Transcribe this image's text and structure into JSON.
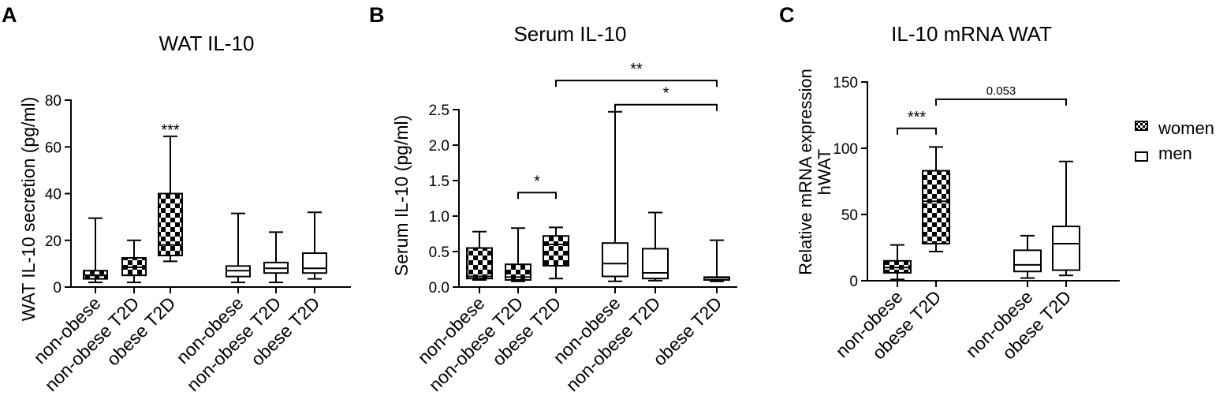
{
  "legend": {
    "items": [
      {
        "label": "women",
        "pattern": "checker"
      },
      {
        "label": "men",
        "pattern": "white"
      }
    ]
  },
  "colors": {
    "ink": "#000000",
    "background": "#ffffff"
  },
  "chart_data": [
    {
      "panel_label": "A",
      "type": "box",
      "title": "WAT IL-10",
      "ylabel": "WAT IL-10 secretion (pg/ml)",
      "ylim": [
        0,
        80
      ],
      "yticks": [
        "0",
        "20",
        "40",
        "60",
        "80"
      ],
      "categories": [
        "non-obese",
        "non-obese T2D",
        "obese T2D",
        "non-obese",
        "non-obese T2D",
        "obese T2D"
      ],
      "series": [
        {
          "name": "women",
          "pattern": "checker",
          "boxes": [
            {
              "category": "non-obese",
              "min": 2,
              "q1": 3.5,
              "median": 5,
              "q3": 7,
              "max": 29.5
            },
            {
              "category": "non-obese T2D",
              "min": 2,
              "q1": 5,
              "median": 8.5,
              "q3": 12.5,
              "max": 20
            },
            {
              "category": "obese T2D",
              "min": 11,
              "q1": 13.5,
              "median": 18,
              "q3": 40,
              "max": 64.5
            }
          ]
        },
        {
          "pattern": "white",
          "boxes": [
            {
              "category": "non-obese",
              "min": 2,
              "q1": 4.5,
              "median": 7,
              "q3": 9,
              "max": 31.5
            },
            {
              "category": "non-obese T2D",
              "min": 2,
              "q1": 6,
              "median": 8,
              "q3": 10.5,
              "max": 23.5
            },
            {
              "category": "obese T2D",
              "min": 3.5,
              "q1": 6,
              "median": 8,
              "q3": 14.5,
              "max": 32
            }
          ]
        }
      ],
      "annotations": [
        {
          "text": "***",
          "position": 2,
          "y": 67
        }
      ]
    },
    {
      "panel_label": "B",
      "type": "box",
      "title": "Serum IL-10",
      "ylabel": "Serum IL-10 (pg/ml)",
      "ylim": [
        0,
        2.5
      ],
      "yticks": [
        "0.0",
        "0.5",
        "1.0",
        "1.5",
        "2.0",
        "2.5"
      ],
      "categories": [
        "non-obese",
        "non-obese T2D",
        "obese T2D",
        "non-obese",
        "non-obese T2D",
        "obese T2D"
      ],
      "series": [
        {
          "name": "women",
          "pattern": "checker",
          "boxes": [
            {
              "category": "non-obese",
              "min": 0.1,
              "q1": 0.12,
              "median": 0.15,
              "q3": 0.55,
              "max": 0.78
            },
            {
              "category": "non-obese T2D",
              "min": 0.08,
              "q1": 0.1,
              "median": 0.14,
              "q3": 0.32,
              "max": 0.83
            },
            {
              "category": "obese T2D",
              "min": 0.12,
              "q1": 0.3,
              "median": 0.6,
              "q3": 0.72,
              "max": 0.84
            }
          ]
        },
        {
          "pattern": "white",
          "boxes": [
            {
              "category": "non-obese",
              "min": 0.08,
              "q1": 0.15,
              "median": 0.33,
              "q3": 0.62,
              "max": 2.47
            },
            {
              "category": "non-obese T2D",
              "min": 0.09,
              "q1": 0.12,
              "median": 0.2,
              "q3": 0.54,
              "max": 1.05
            },
            {
              "category": "obese T2D",
              "min": 0.08,
              "q1": 0.1,
              "median": 0.13,
              "q3": 0.14,
              "max": 0.66
            }
          ]
        }
      ],
      "annotations": [
        {
          "text": "*",
          "from": 1,
          "to": 2,
          "y": 1.33
        },
        {
          "text": "*",
          "from": 3,
          "to": 5,
          "y": 2.57
        },
        {
          "text": "**",
          "from": 2,
          "to": 5,
          "y": 2.91
        }
      ]
    },
    {
      "panel_label": "C",
      "type": "box",
      "title": "IL-10 mRNA WAT",
      "ylabel": [
        "Relative mRNA expression",
        "hWAT"
      ],
      "ylim": [
        0,
        150
      ],
      "yticks": [
        "0",
        "50",
        "100",
        "150"
      ],
      "categories": [
        "non-obese",
        "obese T2D",
        "non-obese",
        "obese T2D"
      ],
      "series": [
        {
          "name": "women",
          "pattern": "checker",
          "boxes": [
            {
              "category": "non-obese",
              "min": 1,
              "q1": 6,
              "median": 10,
              "q3": 15,
              "max": 27
            },
            {
              "category": "obese T2D",
              "min": 22,
              "q1": 28,
              "median": 60,
              "q3": 83,
              "max": 101
            }
          ]
        },
        {
          "name": "men",
          "pattern": "white",
          "boxes": [
            {
              "category": "non-obese",
              "min": 2,
              "q1": 7,
              "median": 12,
              "q3": 23,
              "max": 34
            },
            {
              "category": "obese T2D",
              "min": 4,
              "q1": 8,
              "median": 28,
              "q3": 41,
              "max": 90
            }
          ]
        }
      ],
      "annotations": [
        {
          "text": "***",
          "from": 0,
          "to": 1,
          "y": 115
        },
        {
          "text": "0.053",
          "from": 1,
          "to": 3,
          "y": 137
        }
      ]
    }
  ]
}
